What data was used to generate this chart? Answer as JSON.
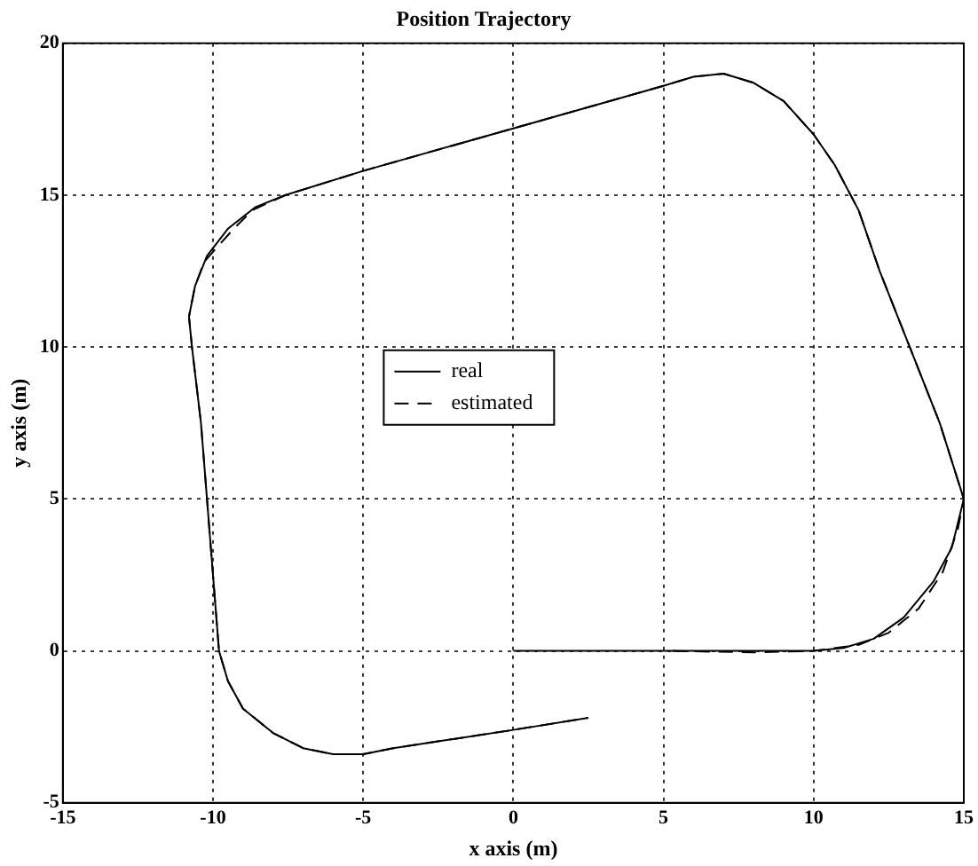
{
  "chart_data": {
    "type": "line",
    "title": "Position Trajectory",
    "xlabel": "x axis (m)",
    "ylabel": "y axis (m)",
    "xlim": [
      -15,
      15
    ],
    "ylim": [
      -5,
      20
    ],
    "xticks": [
      -15,
      -10,
      -5,
      0,
      5,
      10,
      15
    ],
    "yticks": [
      -5,
      0,
      5,
      10,
      15,
      20
    ],
    "grid": true,
    "legend": "center",
    "marker": "none",
    "series": [
      {
        "name": "real",
        "color": "#000000",
        "line_style": "solid",
        "x": [
          0,
          5,
          10,
          11,
          12,
          13,
          14,
          14.6,
          15,
          14.2,
          13.2,
          12.2,
          11.5,
          10.7,
          10,
          9,
          8,
          7,
          6,
          5,
          0,
          -5,
          -7.6,
          -8.6,
          -9.5,
          -10.2,
          -10.6,
          -10.8,
          -10.7,
          -10.4,
          -10.2,
          -10,
          -9.8,
          -9.5,
          -9,
          -8,
          -7,
          -6,
          -5,
          -4,
          -2,
          0,
          2.5
        ],
        "values": [
          0,
          0,
          0,
          0.1,
          0.4,
          1.1,
          2.3,
          3.4,
          5,
          7.5,
          10,
          12.5,
          14.5,
          16,
          17,
          18.1,
          18.7,
          19,
          18.9,
          18.6,
          17.2,
          15.8,
          15,
          14.6,
          13.9,
          13,
          12,
          11,
          10,
          7.5,
          5,
          2.5,
          0,
          -1,
          -1.9,
          -2.7,
          -3.2,
          -3.4,
          -3.4,
          -3.2,
          -2.9,
          -2.6,
          -2.2
        ]
      },
      {
        "name": "estimated",
        "color": "#000000",
        "line_style": "dashed",
        "x": [
          5.3,
          8,
          10,
          11.5,
          12.5,
          13.5,
          14.3,
          14.8,
          15,
          14.2,
          13.2,
          12.2,
          11.5,
          10.7,
          10,
          9,
          8,
          7,
          6,
          5,
          0,
          -5,
          -7.6,
          -8.7,
          -9.4,
          -10.3,
          -10.6,
          -10.8,
          -10.7,
          -10.4,
          -10.2,
          -10,
          -9.8,
          -9.5,
          -9,
          -8,
          -7,
          -6,
          -5,
          -4,
          -2,
          0,
          2.5
        ],
        "values": [
          0,
          -0.05,
          0,
          0.2,
          0.6,
          1.4,
          2.6,
          4,
          5,
          7.5,
          10,
          12.5,
          14.5,
          16,
          17,
          18.1,
          18.7,
          19,
          18.9,
          18.6,
          17.2,
          15.8,
          15,
          14.5,
          13.8,
          12.8,
          12,
          11,
          10,
          7.5,
          5,
          2.5,
          0,
          -1,
          -1.9,
          -2.7,
          -3.2,
          -3.4,
          -3.4,
          -3.2,
          -2.9,
          -2.6,
          -2.2
        ]
      }
    ]
  }
}
